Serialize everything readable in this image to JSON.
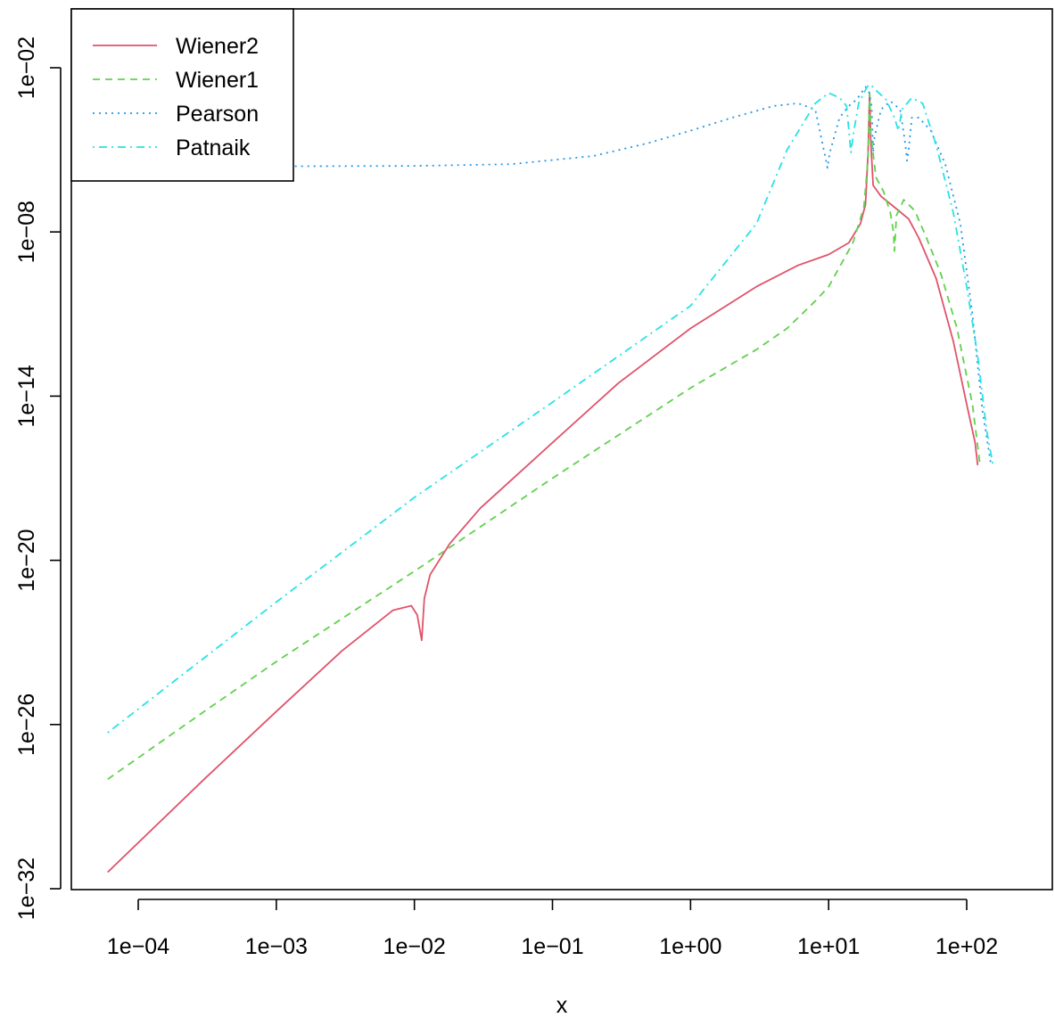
{
  "chart_data": {
    "type": "line",
    "title": "",
    "xlabel": "x",
    "ylabel": "",
    "x_scale": "log",
    "y_scale": "log",
    "xlim": [
      4.75e-05,
      340
    ],
    "ylim": [
      1e-33,
      0.035
    ],
    "x_ticks": [
      0.0001,
      0.001,
      0.01,
      0.1,
      1,
      10,
      100
    ],
    "x_tick_labels": [
      "1e−04",
      "1e−03",
      "1e−02",
      "1e−01",
      "1e+00",
      "1e+01",
      "1e+02"
    ],
    "y_ticks": [
      1e-32,
      1e-26,
      1e-20,
      1e-14,
      1e-08,
      0.01
    ],
    "y_tick_labels": [
      "1e−32",
      "1e−26",
      "1e−20",
      "1e−14",
      "1e−08",
      "1e−02"
    ],
    "grid": false,
    "legend": "top-left",
    "series": [
      {
        "name": "Wiener2",
        "color": "#DF536B",
        "dash": "solid",
        "points": [
          [
            6e-05,
            4e-32
          ],
          [
            0.0003,
            1e-28
          ],
          [
            0.001,
            3e-26
          ],
          [
            0.003,
            5e-24
          ],
          [
            0.007,
            1.5e-22
          ],
          [
            0.0095,
            2.2e-22
          ],
          [
            0.0105,
            1e-22
          ],
          [
            0.0113,
            1.2e-23
          ],
          [
            0.0118,
            4e-22
          ],
          [
            0.013,
            3e-21
          ],
          [
            0.018,
            4e-20
          ],
          [
            0.03,
            8e-19
          ],
          [
            0.1,
            2e-16
          ],
          [
            0.3,
            3e-14
          ],
          [
            1,
            3e-12
          ],
          [
            3,
            1e-10
          ],
          [
            6,
            6e-10
          ],
          [
            10,
            1.5e-09
          ],
          [
            14,
            4e-09
          ],
          [
            17,
            2e-08
          ],
          [
            18.5,
            1e-07
          ],
          [
            19.3,
            8e-06
          ],
          [
            19.8,
            0.0012
          ],
          [
            20.2,
            2e-05
          ],
          [
            21,
            5e-07
          ],
          [
            24,
            2e-07
          ],
          [
            30,
            8e-08
          ],
          [
            38,
            3e-08
          ],
          [
            45,
            6e-09
          ],
          [
            60,
            2e-10
          ],
          [
            80,
            1e-12
          ],
          [
            100,
            5e-15
          ],
          [
            115,
            2e-16
          ],
          [
            120,
            3e-17
          ]
        ]
      },
      {
        "name": "Wiener1",
        "color": "#61D04F",
        "dash": "dashed",
        "points": [
          [
            6e-05,
            1e-28
          ],
          [
            0.0003,
            3e-26
          ],
          [
            0.001,
            2e-24
          ],
          [
            0.01,
            4e-21
          ],
          [
            0.1,
            1e-17
          ],
          [
            1,
            2e-14
          ],
          [
            3,
            5e-13
          ],
          [
            5,
            3e-12
          ],
          [
            8,
            3e-11
          ],
          [
            10,
            1e-10
          ],
          [
            15,
            4e-09
          ],
          [
            18,
            8e-08
          ],
          [
            19.3,
            5e-06
          ],
          [
            19.8,
            0.0012
          ],
          [
            20.2,
            4e-05
          ],
          [
            22,
            1e-06
          ],
          [
            25,
            3e-07
          ],
          [
            28,
            5e-08
          ],
          [
            29.5,
            1e-08
          ],
          [
            30,
            2e-09
          ],
          [
            31,
            4e-08
          ],
          [
            35,
            1.5e-07
          ],
          [
            42,
            6e-08
          ],
          [
            50,
            8e-09
          ],
          [
            65,
            3e-10
          ],
          [
            85,
            3e-12
          ],
          [
            110,
            5e-15
          ],
          [
            125,
            3e-17
          ]
        ]
      },
      {
        "name": "Pearson",
        "color": "#2297E6",
        "dash": "dotted",
        "points": [
          [
            6e-05,
            2.5e-06
          ],
          [
            0.001,
            2.5e-06
          ],
          [
            0.01,
            2.6e-06
          ],
          [
            0.05,
            3e-06
          ],
          [
            0.2,
            6e-06
          ],
          [
            0.5,
            1.8e-05
          ],
          [
            1,
            5e-05
          ],
          [
            2,
            0.00015
          ],
          [
            4,
            0.0004
          ],
          [
            6,
            0.0005
          ],
          [
            8,
            0.0003
          ],
          [
            9.5,
            5e-06
          ],
          [
            9.8,
            2.2e-06
          ],
          [
            10.2,
            8e-06
          ],
          [
            12,
            0.00015
          ],
          [
            14,
            0.0004
          ],
          [
            16,
            0.0007
          ],
          [
            18.5,
            0.002
          ],
          [
            19.5,
            0.0015
          ],
          [
            20.5,
            0.0004
          ],
          [
            21,
            8e-06
          ],
          [
            21.5,
            3e-05
          ],
          [
            24,
            0.0003
          ],
          [
            28,
            0.0006
          ],
          [
            33,
            0.0003
          ],
          [
            36,
            1.5e-05
          ],
          [
            37,
            4e-06
          ],
          [
            38,
            1e-05
          ],
          [
            40,
            0.00015
          ],
          [
            45,
            0.00015
          ],
          [
            55,
            5e-05
          ],
          [
            70,
            3e-06
          ],
          [
            90,
            2e-08
          ],
          [
            110,
            1e-11
          ],
          [
            130,
            3e-15
          ],
          [
            150,
            3e-17
          ]
        ]
      },
      {
        "name": "Patnaik",
        "color": "#28E2E5",
        "dash": "dotdash",
        "points": [
          [
            6e-05,
            5e-27
          ],
          [
            0.001,
            3e-22
          ],
          [
            0.01,
            2e-18
          ],
          [
            0.1,
            6e-15
          ],
          [
            1,
            2e-11
          ],
          [
            3,
            2e-08
          ],
          [
            5,
            1e-05
          ],
          [
            8,
            0.0005
          ],
          [
            10,
            0.0012
          ],
          [
            12,
            0.0008
          ],
          [
            13.5,
            0.0004
          ],
          [
            14.5,
            8e-06
          ],
          [
            15,
            3e-05
          ],
          [
            16.5,
            0.0005
          ],
          [
            18,
            0.0012
          ],
          [
            19,
            0.002
          ],
          [
            20,
            0.0025
          ],
          [
            22,
            0.0015
          ],
          [
            26,
            0.0007
          ],
          [
            30,
            0.00015
          ],
          [
            32,
            5e-05
          ],
          [
            34,
            0.0003
          ],
          [
            40,
            0.0008
          ],
          [
            48,
            0.0005
          ],
          [
            60,
            1.5e-05
          ],
          [
            80,
            5e-08
          ],
          [
            100,
            1e-10
          ],
          [
            120,
            3e-13
          ],
          [
            140,
            5e-16
          ],
          [
            155,
            3e-17
          ]
        ]
      }
    ]
  }
}
